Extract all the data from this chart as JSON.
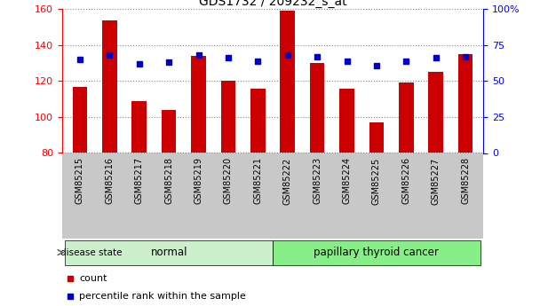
{
  "title": "GDS1732 / 209232_s_at",
  "samples": [
    "GSM85215",
    "GSM85216",
    "GSM85217",
    "GSM85218",
    "GSM85219",
    "GSM85220",
    "GSM85221",
    "GSM85222",
    "GSM85223",
    "GSM85224",
    "GSM85225",
    "GSM85226",
    "GSM85227",
    "GSM85228"
  ],
  "counts": [
    117,
    154,
    109,
    104,
    134,
    120,
    116,
    159,
    130,
    116,
    97,
    119,
    125,
    135
  ],
  "percentiles": [
    65,
    68,
    62,
    63,
    68,
    66,
    64,
    68,
    67,
    64,
    61,
    64,
    66,
    67
  ],
  "group_labels": [
    "normal",
    "papillary thyroid cancer"
  ],
  "group_sizes": [
    7,
    7
  ],
  "ylim_left": [
    80,
    160
  ],
  "ylim_right": [
    0,
    100
  ],
  "yticks_left": [
    80,
    100,
    120,
    140,
    160
  ],
  "yticks_right": [
    0,
    25,
    50,
    75,
    100
  ],
  "bar_color": "#cc0000",
  "dot_color": "#0000cc",
  "background_color": "#ffffff",
  "tick_bg_color": "#c8c8c8",
  "group_color_normal": "#ccf0cc",
  "group_color_cancer": "#88ee88",
  "label_count": "count",
  "label_percentile": "percentile rank within the sample",
  "figwidth": 6.08,
  "figheight": 3.45,
  "dpi": 100
}
